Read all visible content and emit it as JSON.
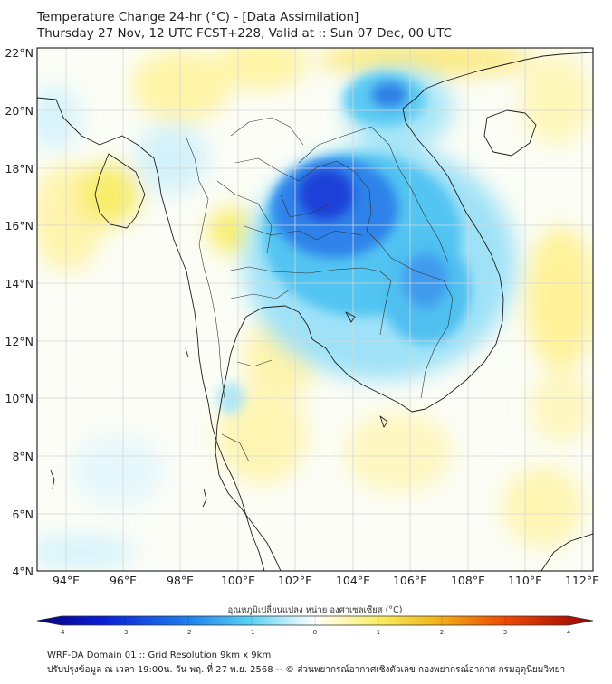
{
  "title": {
    "line1": "Temperature Change 24-hr (°C) - [Data Assimilation]",
    "line2": "Thursday 27 Nov, 12 UTC FCST+228, Valid at :: Sun 07 Dec, 00 UTC"
  },
  "map": {
    "lat_labels": [
      "22°N",
      "20°N",
      "18°N",
      "16°N",
      "14°N",
      "12°N",
      "10°N",
      "8°N",
      "6°N",
      "4°N"
    ],
    "lon_labels": [
      "94°E",
      "96°E",
      "98°E",
      "100°E",
      "102°E",
      "104°E",
      "106°E",
      "108°E",
      "110°E",
      "112°E"
    ]
  },
  "colorbar": {
    "label": "อุณหภูมิเปลี่ยนแปลง หน่วย องศาเซลเซียส (°C)",
    "ticks": [
      "-4",
      "-3",
      "-2",
      "-1",
      "0",
      "1",
      "2",
      "3",
      "4"
    ]
  },
  "footer": {
    "line1": "WRF-DA Domain 01 :: Grid Resolution 9km x 9km",
    "line2": "ปรับปรุงข้อมูล ณ เวลา 19:00น. วัน พฤ. ที่ 27 พ.ย. 2568 -- © ส่วนพยากรณ์อากาศเชิงตัวเลข กองพยากรณ์อากาศ กรมอุตุนิยมวิทยา"
  },
  "colors": {
    "strong_cool": "#1a3fe0",
    "moderate_cool": "#38b6f0",
    "light_cool": "#bfeefc",
    "neutral": "#ffffff",
    "light_warm": "#fff4a8",
    "moderate_warm": "#f2e23a",
    "strong_warm": "#ff7a00",
    "coastline": "#1e1e1e"
  }
}
